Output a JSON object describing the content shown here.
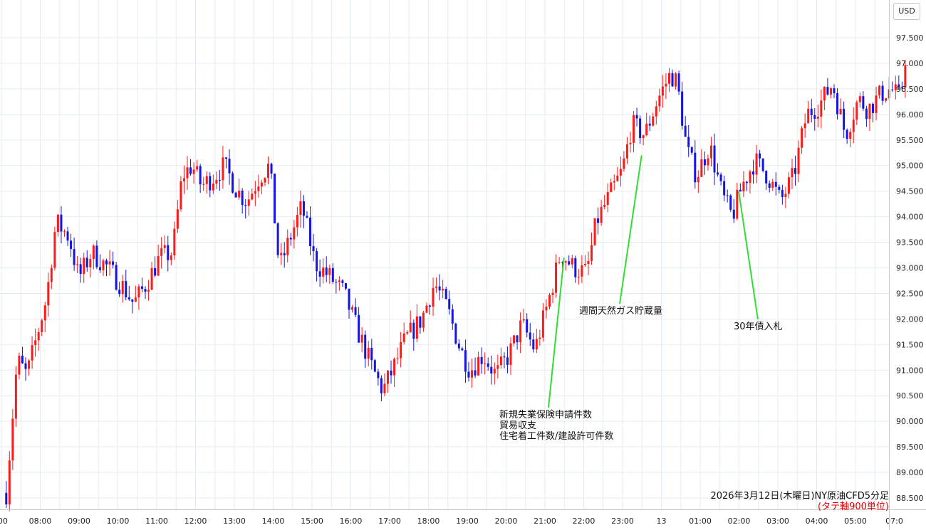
{
  "currency": "USD",
  "caption": {
    "main": "2026年3月12日(木曜日)NY原油CFD5分足",
    "sub": "(タテ軸900単位)"
  },
  "chart_data": {
    "type": "candlestick",
    "title": "",
    "xlabel": "",
    "ylabel": "",
    "ylim": [
      88.4,
      97.9
    ],
    "y_ticks": [
      "88.500",
      "89.000",
      "89.500",
      "90.000",
      "90.500",
      "91.000",
      "91.500",
      "92.000",
      "92.500",
      "93.000",
      "93.500",
      "94.000",
      "94.500",
      "95.000",
      "95.500",
      "96.000",
      "96.500",
      "97.000",
      "97.500"
    ],
    "x_tick_labels": [
      ":00",
      "08:00",
      "09:00",
      "10:00",
      "11:00",
      "12:00",
      "13:00",
      "14:00",
      "15:00",
      "16:00",
      "17:00",
      "18:00",
      "19:00",
      "20:00",
      "21:00",
      "22:00",
      "23:00",
      "13",
      "01:00",
      "02:00",
      "03:00",
      "04:00",
      "05:00",
      "07:0"
    ],
    "grid": true,
    "colors": {
      "up": "#ff1a1a",
      "down": "#1515e0",
      "annotation_line": "#33dd33",
      "grid": "#e4edf4"
    },
    "price_path_anchors": [
      {
        "t": "07:08",
        "price": 88.6
      },
      {
        "t": "07:25",
        "price": 91.2
      },
      {
        "t": "07:40",
        "price": 90.9
      },
      {
        "t": "08:10",
        "price": 92.4
      },
      {
        "t": "08:25",
        "price": 93.9
      },
      {
        "t": "08:45",
        "price": 93.6
      },
      {
        "t": "09:00",
        "price": 92.8
      },
      {
        "t": "09:20",
        "price": 93.3
      },
      {
        "t": "09:45",
        "price": 93.0
      },
      {
        "t": "10:10",
        "price": 92.6
      },
      {
        "t": "10:25",
        "price": 92.3
      },
      {
        "t": "10:45",
        "price": 92.7
      },
      {
        "t": "11:05",
        "price": 93.2
      },
      {
        "t": "11:25",
        "price": 93.3
      },
      {
        "t": "11:40",
        "price": 94.8
      },
      {
        "t": "11:55",
        "price": 95.0
      },
      {
        "t": "12:10",
        "price": 94.6
      },
      {
        "t": "12:30",
        "price": 94.8
      },
      {
        "t": "12:45",
        "price": 95.0
      },
      {
        "t": "13:05",
        "price": 94.5
      },
      {
        "t": "13:20",
        "price": 94.3
      },
      {
        "t": "13:40",
        "price": 94.8
      },
      {
        "t": "13:55",
        "price": 95.0
      },
      {
        "t": "14:10",
        "price": 93.0
      },
      {
        "t": "14:30",
        "price": 93.7
      },
      {
        "t": "14:45",
        "price": 94.2
      },
      {
        "t": "15:05",
        "price": 93.1
      },
      {
        "t": "15:30",
        "price": 92.8
      },
      {
        "t": "15:50",
        "price": 92.5
      },
      {
        "t": "16:10",
        "price": 91.8
      },
      {
        "t": "16:35",
        "price": 91.0
      },
      {
        "t": "16:50",
        "price": 90.6
      },
      {
        "t": "17:05",
        "price": 91.0
      },
      {
        "t": "17:25",
        "price": 91.6
      },
      {
        "t": "17:50",
        "price": 92.0
      },
      {
        "t": "18:10",
        "price": 92.7
      },
      {
        "t": "18:30",
        "price": 92.2
      },
      {
        "t": "18:50",
        "price": 91.4
      },
      {
        "t": "19:05",
        "price": 91.0
      },
      {
        "t": "19:25",
        "price": 91.3
      },
      {
        "t": "19:45",
        "price": 90.9
      },
      {
        "t": "20:05",
        "price": 91.3
      },
      {
        "t": "20:25",
        "price": 91.9
      },
      {
        "t": "20:45",
        "price": 91.4
      },
      {
        "t": "21:05",
        "price": 92.3
      },
      {
        "t": "21:25",
        "price": 93.3
      },
      {
        "t": "21:45",
        "price": 93.0
      },
      {
        "t": "22:05",
        "price": 92.9
      },
      {
        "t": "22:20",
        "price": 93.9
      },
      {
        "t": "22:40",
        "price": 94.4
      },
      {
        "t": "23:00",
        "price": 94.9
      },
      {
        "t": "23:15",
        "price": 95.8
      },
      {
        "t": "23:35",
        "price": 95.6
      },
      {
        "t": "23:55",
        "price": 96.3
      },
      {
        "t": "00:15",
        "price": 96.8
      },
      {
        "t": "00:25",
        "price": 96.6
      },
      {
        "t": "00:40",
        "price": 95.3
      },
      {
        "t": "00:55",
        "price": 94.8
      },
      {
        "t": "01:15",
        "price": 95.4
      },
      {
        "t": "01:35",
        "price": 94.4
      },
      {
        "t": "01:50",
        "price": 94.0
      },
      {
        "t": "02:05",
        "price": 94.6
      },
      {
        "t": "02:25",
        "price": 95.1
      },
      {
        "t": "02:45",
        "price": 94.8
      },
      {
        "t": "03:05",
        "price": 94.3
      },
      {
        "t": "03:25",
        "price": 94.8
      },
      {
        "t": "03:45",
        "price": 96.0
      },
      {
        "t": "04:05",
        "price": 96.2
      },
      {
        "t": "04:25",
        "price": 96.6
      },
      {
        "t": "04:45",
        "price": 95.6
      },
      {
        "t": "05:05",
        "price": 96.3
      },
      {
        "t": "05:20",
        "price": 96.1
      },
      {
        "t": "05:40",
        "price": 96.4
      },
      {
        "t": "05:55",
        "price": 96.5
      },
      {
        "t": "06:10",
        "price": 96.3
      },
      {
        "t": "06:20",
        "price": 97.4
      }
    ],
    "annotations": [
      {
        "lines": [
          "新規失業保険申請件数",
          "貿易収支",
          "住宅着工件数/建設許可件数"
        ],
        "time": "21:30",
        "price": 93.2
      },
      {
        "lines": [
          "週間天然ガス貯蔵量"
        ],
        "time": "23:30",
        "price": 95.2
      },
      {
        "lines": [
          "30年債入札"
        ],
        "time": "02:00",
        "price": 94.5
      }
    ]
  }
}
